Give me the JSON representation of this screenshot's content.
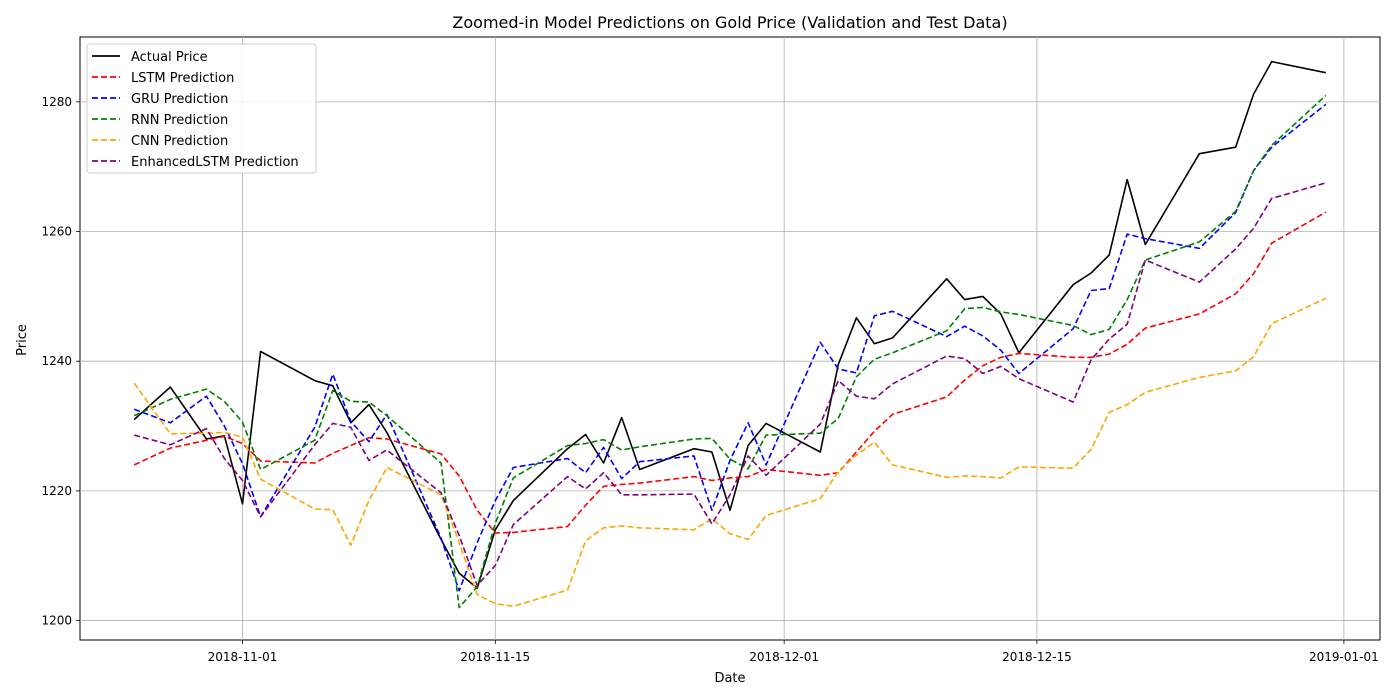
{
  "chart_data": {
    "type": "line",
    "title": "Zoomed-in Model Predictions on Gold Price (Validation and Test Data)",
    "xlabel": "Date",
    "ylabel": "Price",
    "xlim": [
      "2018-10-23",
      "2019-01-03"
    ],
    "ylim": [
      1197,
      1290
    ],
    "x_ticks": [
      "2018-11-01",
      "2018-11-15",
      "2018-12-01",
      "2018-12-15",
      "2019-01-01"
    ],
    "y_ticks": [
      1200,
      1220,
      1240,
      1260,
      1280
    ],
    "grid": true,
    "legend_position": "upper-left",
    "x": [
      "2018-10-26",
      "2018-10-28",
      "2018-10-30",
      "2018-10-31",
      "2018-11-01",
      "2018-11-02",
      "2018-11-05",
      "2018-11-06",
      "2018-11-07",
      "2018-11-08",
      "2018-11-09",
      "2018-11-12",
      "2018-11-13",
      "2018-11-14",
      "2018-11-15",
      "2018-11-16",
      "2018-11-19",
      "2018-11-20",
      "2018-11-21",
      "2018-11-22",
      "2018-11-23",
      "2018-11-26",
      "2018-11-27",
      "2018-11-28",
      "2018-11-29",
      "2018-11-30",
      "2018-12-03",
      "2018-12-04",
      "2018-12-05",
      "2018-12-06",
      "2018-12-07",
      "2018-12-10",
      "2018-12-11",
      "2018-12-12",
      "2018-12-13",
      "2018-12-14",
      "2018-12-17",
      "2018-12-18",
      "2018-12-19",
      "2018-12-20",
      "2018-12-21",
      "2018-12-24",
      "2018-12-26",
      "2018-12-27",
      "2018-12-28",
      "2018-12-31"
    ],
    "series": [
      {
        "name": "Actual Price",
        "color": "#000000",
        "dash": "solid",
        "values": [
          1231.0,
          1236.0,
          1228.0,
          1228.5,
          1218.0,
          1241.5,
          1237.0,
          1236.2,
          1230.5,
          1233.3,
          1229.0,
          1212.5,
          1207.3,
          1205.0,
          1214.0,
          1218.5,
          1226.5,
          1228.7,
          1224.3,
          1231.3,
          1223.3,
          1226.5,
          1226.0,
          1217.0,
          1227.0,
          1230.4,
          1226.0,
          1239.5,
          1246.7,
          1242.7,
          1243.6,
          1252.7,
          1249.5,
          1250.0,
          1247.3,
          1241.3,
          1251.8,
          1253.6,
          1256.4,
          1268.0,
          1258.0,
          1272.0,
          1273.0,
          1281.2,
          1286.2,
          1284.5
        ],
        "values_dated": null
      },
      {
        "name": "LSTM Prediction",
        "color": "#ff0000",
        "dash": "dashed",
        "values": [
          1224.0,
          1226.6,
          1227.8,
          1228.4,
          1227.3,
          1224.6,
          1224.3,
          1225.8,
          1227.0,
          1228.2,
          1228.0,
          1225.7,
          1222.3,
          1217.0,
          1213.5,
          1213.6,
          1214.5,
          1217.8,
          1220.7,
          1221.0,
          1221.2,
          1222.2,
          1221.6,
          1222.0,
          1222.2,
          1223.3,
          1222.4,
          1222.8,
          1226.0,
          1229.2,
          1231.8,
          1234.5,
          1237.1,
          1239.3,
          1240.6,
          1241.2,
          1240.6,
          1240.6,
          1241.1,
          1242.6,
          1245.1,
          1247.3,
          1250.4,
          1253.5,
          1258.2,
          1263.0
        ]
      },
      {
        "name": "GRU Prediction",
        "color": "#0000ff",
        "dash": "dashed",
        "values": [
          1232.6,
          1230.5,
          1234.6,
          1230.0,
          1224.2,
          1216.0,
          1229.8,
          1238.0,
          1230.7,
          1227.6,
          1231.8,
          1212.7,
          1204.6,
          1212.0,
          1218.5,
          1223.6,
          1225.0,
          1222.8,
          1226.7,
          1221.9,
          1224.5,
          1225.4,
          1217.0,
          1224.7,
          1230.5,
          1224.0,
          1242.9,
          1238.8,
          1238.2,
          1247.0,
          1247.7,
          1243.8,
          1245.4,
          1243.9,
          1241.7,
          1238.1,
          1245.0,
          1250.9,
          1251.2,
          1259.6,
          1258.9,
          1257.4,
          1262.9,
          1269.4,
          1273.0,
          1279.6
        ]
      },
      {
        "name": "RNN Prediction",
        "color": "#008000",
        "dash": "dashed",
        "values": [
          1231.6,
          1234.1,
          1235.7,
          1233.8,
          1230.6,
          1223.3,
          1227.8,
          1235.5,
          1233.8,
          1233.7,
          1231.6,
          1224.3,
          1202.0,
          1205.2,
          1215.0,
          1222.0,
          1227.0,
          1227.3,
          1227.9,
          1226.3,
          1226.8,
          1228.0,
          1228.1,
          1224.9,
          1223.4,
          1228.6,
          1228.9,
          1231.2,
          1237.6,
          1240.3,
          1241.3,
          1244.7,
          1248.1,
          1248.3,
          1247.6,
          1247.2,
          1245.5,
          1244.1,
          1244.9,
          1249.5,
          1255.6,
          1258.4,
          1263.1,
          1269.4,
          1273.3,
          1281.0
        ]
      },
      {
        "name": "CNN Prediction",
        "color": "#ffa500",
        "dash": "dashed",
        "values": [
          1236.6,
          1228.8,
          1228.9,
          1229.0,
          1228.3,
          1221.8,
          1217.2,
          1217.1,
          1211.6,
          1218.5,
          1223.6,
          1219.4,
          1212.0,
          1204.0,
          1202.6,
          1202.2,
          1204.7,
          1212.3,
          1214.3,
          1214.6,
          1214.3,
          1214.0,
          1215.7,
          1213.4,
          1212.5,
          1216.2,
          1218.8,
          1223.0,
          1225.5,
          1227.5,
          1224.0,
          1222.1,
          1222.3,
          1222.2,
          1222.0,
          1223.7,
          1223.5,
          1226.4,
          1232.1,
          1233.3,
          1235.2,
          1237.5,
          1238.5,
          1240.7,
          1245.8,
          1249.7
        ]
      },
      {
        "name": "EnhancedLSTM Prediction",
        "color": "#800080",
        "dash": "dashed",
        "values": [
          1228.6,
          1227.1,
          1229.6,
          1225.0,
          1221.6,
          1216.0,
          1227.1,
          1230.4,
          1229.8,
          1224.7,
          1226.3,
          1219.7,
          1213.1,
          1205.4,
          1208.5,
          1214.8,
          1222.2,
          1220.3,
          1222.8,
          1219.4,
          1219.4,
          1219.5,
          1214.9,
          1219.4,
          1225.4,
          1222.4,
          1230.3,
          1237.0,
          1234.6,
          1234.2,
          1236.5,
          1240.8,
          1240.4,
          1238.1,
          1239.2,
          1237.3,
          1233.7,
          1240.2,
          1243.4,
          1245.7,
          1255.6,
          1252.2,
          1257.3,
          1260.5,
          1265.1,
          1267.5
        ]
      }
    ]
  }
}
